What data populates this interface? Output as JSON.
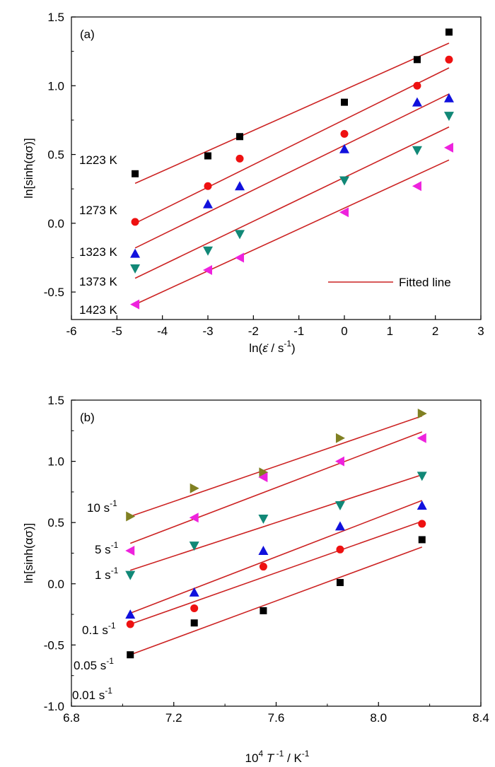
{
  "chart_data": [
    {
      "type": "scatter",
      "panel_label": "(a)",
      "xlabel_prefix": "ln(",
      "xlabel_symbol": "ε̇",
      "xlabel_suffix": " / s",
      "xlabel_sup": "-1",
      "xlabel_close": ")",
      "ylabel": "ln[sinh(ασ)]",
      "xlim": [
        -6,
        3
      ],
      "ylim": [
        -0.7,
        1.5
      ],
      "x_ticks": [
        "-6",
        "-5",
        "-4",
        "-3",
        "-2",
        "-1",
        "0",
        "1",
        "2",
        "3"
      ],
      "y_ticks": [
        "-0.5",
        "0.0",
        "0.5",
        "1.0",
        "1.5"
      ],
      "legend": {
        "label": "Fitted line",
        "position": "bottom-right"
      },
      "fit_color": "#cc2222",
      "series": [
        {
          "name": "1223 K",
          "marker": "square",
          "color": "#000000",
          "x": [
            -4.6,
            -3.0,
            -2.3,
            0.0,
            1.6,
            2.3
          ],
          "y": [
            0.36,
            0.49,
            0.63,
            0.88,
            1.19,
            1.39
          ],
          "fit": [
            [
              -4.6,
              0.29
            ],
            [
              2.3,
              1.31
            ]
          ]
        },
        {
          "name": "1273 K",
          "marker": "circle",
          "color": "#ee1111",
          "x": [
            -4.6,
            -3.0,
            -2.3,
            0.0,
            1.6,
            2.3
          ],
          "y": [
            0.01,
            0.27,
            0.47,
            0.65,
            1.0,
            1.19
          ],
          "fit": [
            [
              -4.6,
              0.0
            ],
            [
              2.3,
              1.13
            ]
          ]
        },
        {
          "name": "1323 K",
          "marker": "triangle-up",
          "color": "#1111dd",
          "x": [
            -4.6,
            -3.0,
            -2.3,
            0.0,
            1.6,
            2.3
          ],
          "y": [
            -0.22,
            0.14,
            0.27,
            0.54,
            0.88,
            0.91
          ],
          "fit": [
            [
              -4.6,
              -0.18
            ],
            [
              2.3,
              0.94
            ]
          ]
        },
        {
          "name": "1373 K",
          "marker": "triangle-down",
          "color": "#118877",
          "x": [
            -4.6,
            -3.0,
            -2.3,
            0.0,
            1.6,
            2.3
          ],
          "y": [
            -0.33,
            -0.2,
            -0.08,
            0.31,
            0.53,
            0.78
          ],
          "fit": [
            [
              -4.6,
              -0.4
            ],
            [
              2.3,
              0.7
            ]
          ]
        },
        {
          "name": "1423 K",
          "marker": "triangle-left",
          "color": "#ee22dd",
          "x": [
            -4.6,
            -3.0,
            -2.3,
            0.0,
            1.6,
            2.3
          ],
          "y": [
            -0.59,
            -0.34,
            -0.25,
            0.08,
            0.27,
            0.55
          ],
          "fit": [
            [
              -4.6,
              -0.59
            ],
            [
              2.3,
              0.46
            ]
          ]
        }
      ]
    },
    {
      "type": "scatter",
      "panel_label": "(b)",
      "xlabel_pre": "10",
      "xlabel_pre_sup": "4",
      "xlabel_T": "T",
      "xlabel_T_sup": " -1",
      "xlabel_mid": " / K",
      "xlabel_sup": "-1",
      "ylabel": "ln[sinh(ασ)]",
      "xlim": [
        6.8,
        8.4
      ],
      "ylim": [
        -1.0,
        1.5
      ],
      "x_ticks": [
        "6.8",
        "7.2",
        "7.6",
        "8.0",
        "8.4"
      ],
      "y_ticks": [
        "-1.0",
        "-0.5",
        "0.0",
        "0.5",
        "1.0",
        "1.5"
      ],
      "fit_color": "#cc2222",
      "series": [
        {
          "name": "10 s",
          "marker": "triangle-right",
          "color": "#808022",
          "x": [
            7.03,
            7.28,
            7.55,
            7.85,
            8.17
          ],
          "y": [
            0.55,
            0.78,
            0.91,
            1.19,
            1.39
          ],
          "fit": [
            [
              7.03,
              0.55
            ],
            [
              8.17,
              1.37
            ]
          ]
        },
        {
          "name": "5 s",
          "marker": "triangle-left",
          "color": "#ee22dd",
          "x": [
            7.03,
            7.28,
            7.55,
            7.85,
            8.17
          ],
          "y": [
            0.27,
            0.54,
            0.87,
            1.0,
            1.19
          ],
          "fit": [
            [
              7.03,
              0.33
            ],
            [
              8.17,
              1.24
            ]
          ]
        },
        {
          "name": "1 s",
          "marker": "triangle-down",
          "color": "#118877",
          "x": [
            7.03,
            7.28,
            7.55,
            7.85,
            8.17
          ],
          "y": [
            0.07,
            0.31,
            0.53,
            0.64,
            0.88
          ],
          "fit": [
            [
              7.03,
              0.11
            ],
            [
              8.17,
              0.89
            ]
          ]
        },
        {
          "name": "0.1 s",
          "marker": "triangle-up",
          "color": "#1111dd",
          "x": [
            7.03,
            7.28,
            7.55,
            7.85,
            8.17
          ],
          "y": [
            -0.25,
            -0.07,
            0.27,
            0.47,
            0.64
          ],
          "fit": [
            [
              7.03,
              -0.24
            ],
            [
              8.17,
              0.68
            ]
          ]
        },
        {
          "name": "0.05 s",
          "marker": "circle",
          "color": "#ee1111",
          "x": [
            7.03,
            7.28,
            7.55,
            7.85,
            8.17
          ],
          "y": [
            -0.33,
            -0.2,
            0.14,
            0.28,
            0.49
          ],
          "fit": [
            [
              7.03,
              -0.33
            ],
            [
              8.17,
              0.51
            ]
          ]
        },
        {
          "name": "0.01 s",
          "marker": "square",
          "color": "#000000",
          "x": [
            7.03,
            7.28,
            7.55,
            7.85,
            8.17
          ],
          "y": [
            -0.58,
            -0.32,
            -0.22,
            0.01,
            0.36
          ],
          "fit": [
            [
              7.03,
              -0.58
            ],
            [
              8.17,
              0.3
            ]
          ]
        }
      ],
      "annotation_sup": "-1"
    }
  ]
}
